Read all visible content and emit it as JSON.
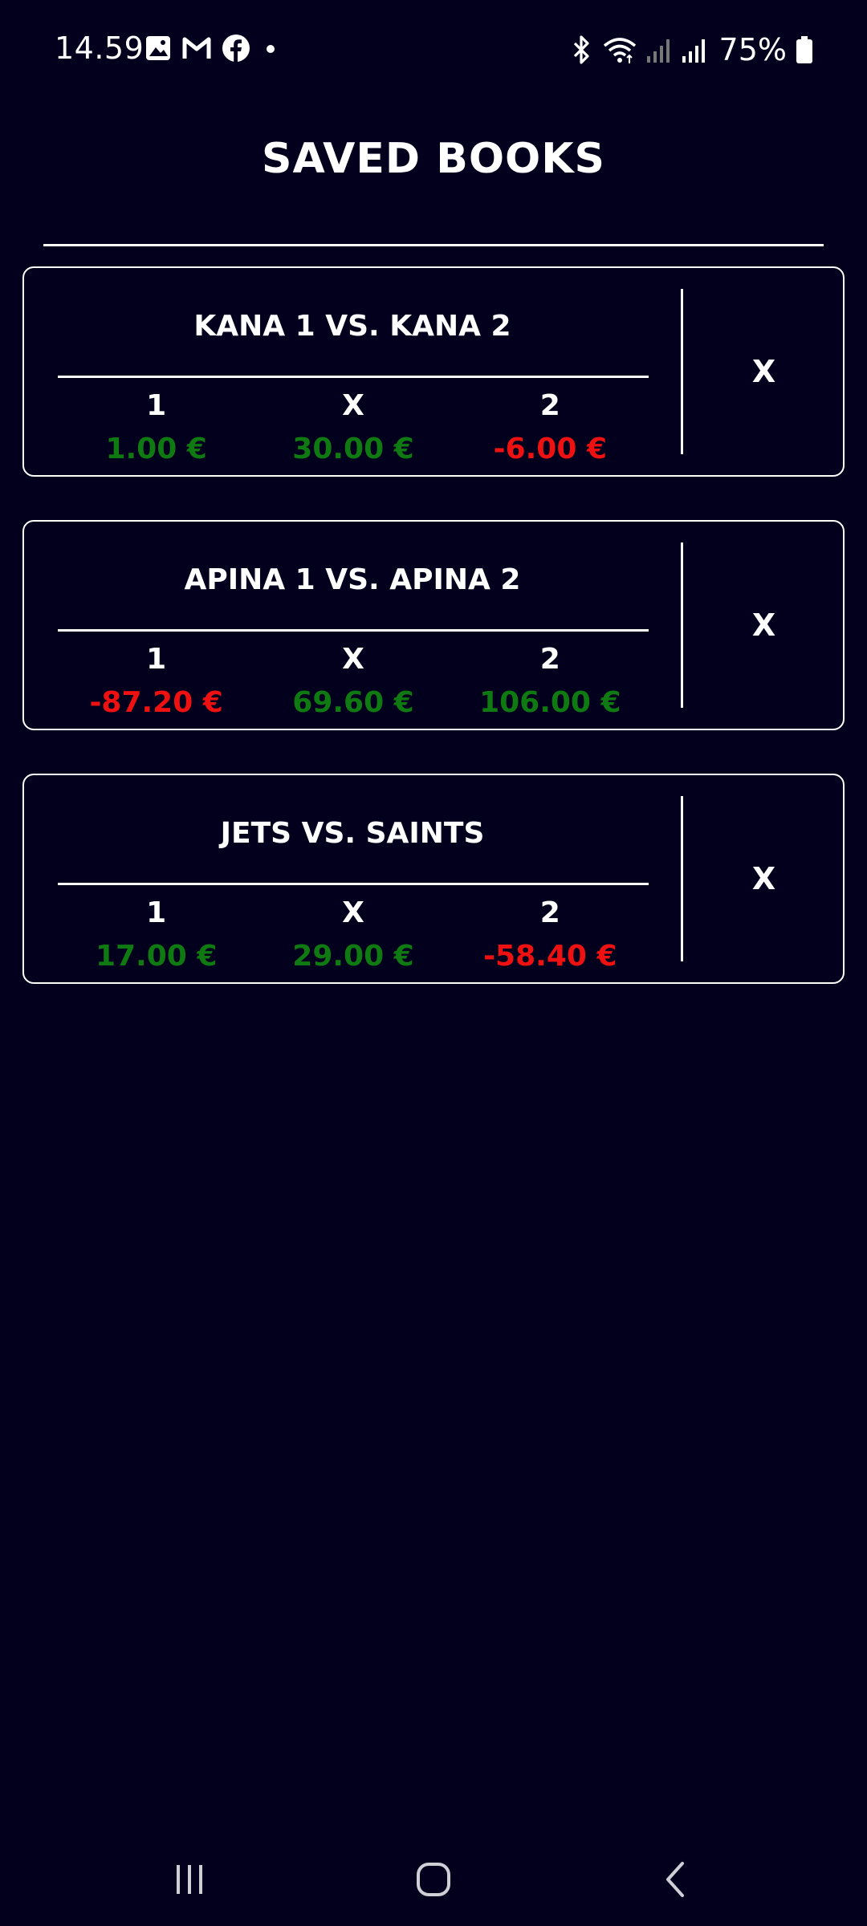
{
  "status_bar": {
    "time": "14.59",
    "battery_percent": "75%",
    "left_icons": [
      "gallery-icon",
      "gmail-icon",
      "facebook-icon",
      "dot-icon"
    ],
    "right_icons": [
      "bluetooth-icon",
      "wifi-icon",
      "signal-icon",
      "signal-icon",
      "battery-icon"
    ]
  },
  "page": {
    "title": "SAVED BOOKS"
  },
  "books": [
    {
      "title": "KANA 1 VS. KANA 2",
      "outcomes": [
        {
          "label": "1",
          "value": "1.00 €",
          "sign": "positive"
        },
        {
          "label": "X",
          "value": "30.00 €",
          "sign": "positive"
        },
        {
          "label": "2",
          "value": "-6.00 €",
          "sign": "negative"
        }
      ],
      "delete_label": "X"
    },
    {
      "title": "APINA 1 VS. APINA 2",
      "outcomes": [
        {
          "label": "1",
          "value": "-87.20 €",
          "sign": "negative"
        },
        {
          "label": "X",
          "value": "69.60 €",
          "sign": "positive"
        },
        {
          "label": "2",
          "value": "106.00 €",
          "sign": "positive"
        }
      ],
      "delete_label": "X"
    },
    {
      "title": "JETS VS. SAINTS",
      "outcomes": [
        {
          "label": "1",
          "value": "17.00 €",
          "sign": "positive"
        },
        {
          "label": "X",
          "value": "29.00 €",
          "sign": "positive"
        },
        {
          "label": "2",
          "value": "-58.40 €",
          "sign": "negative"
        }
      ],
      "delete_label": "X"
    }
  ],
  "colors": {
    "background": "#02001c",
    "positive": "#0f7a12",
    "negative": "#ee1111",
    "foreground": "#ffffff"
  },
  "nav_bar": {
    "buttons": [
      "recents-icon",
      "home-icon",
      "back-icon"
    ]
  }
}
